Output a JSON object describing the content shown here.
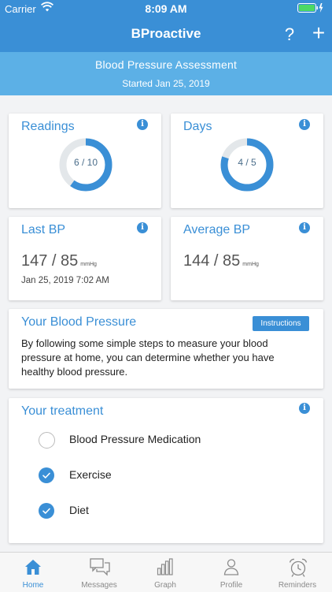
{
  "status_bar": {
    "carrier": "Carrier",
    "time": "8:09 AM"
  },
  "nav": {
    "title": "BProactive",
    "help_label": "?",
    "add_label": "+"
  },
  "assessment": {
    "title": "Blood Pressure Assessment",
    "subtitle": "Started Jan 25, 2019"
  },
  "cards": {
    "readings": {
      "title": "Readings",
      "label": "6 / 10",
      "progress": 0.6
    },
    "days": {
      "title": "Days",
      "label": "4 / 5",
      "progress": 0.8
    },
    "last_bp": {
      "title": "Last BP",
      "value": "147 / 85",
      "unit": "mmHg",
      "date": "Jan 25, 2019 7:02 AM"
    },
    "average_bp": {
      "title": "Average BP",
      "value": "144 / 85",
      "unit": "mmHg"
    }
  },
  "your_bp": {
    "title": "Your Blood Pressure",
    "button": "Instructions",
    "description": "By following some simple steps to measure your blood pressure at home, you can determine whether you have healthy blood pressure."
  },
  "treatment": {
    "title": "Your treatment",
    "items": [
      {
        "label": "Blood Pressure Medication",
        "checked": false
      },
      {
        "label": "Exercise",
        "checked": true
      },
      {
        "label": "Diet",
        "checked": true
      }
    ]
  },
  "tabs": [
    {
      "label": "Home",
      "icon": "home-icon",
      "active": true
    },
    {
      "label": "Messages",
      "icon": "messages-icon",
      "active": false
    },
    {
      "label": "Graph",
      "icon": "graph-icon",
      "active": false
    },
    {
      "label": "Profile",
      "icon": "profile-icon",
      "active": false
    },
    {
      "label": "Reminders",
      "icon": "alarm-clock-icon",
      "active": false
    }
  ],
  "colors": {
    "primary": "#3a8fd6",
    "banner": "#5cb0e6",
    "ring_track": "#e3e7ea"
  }
}
